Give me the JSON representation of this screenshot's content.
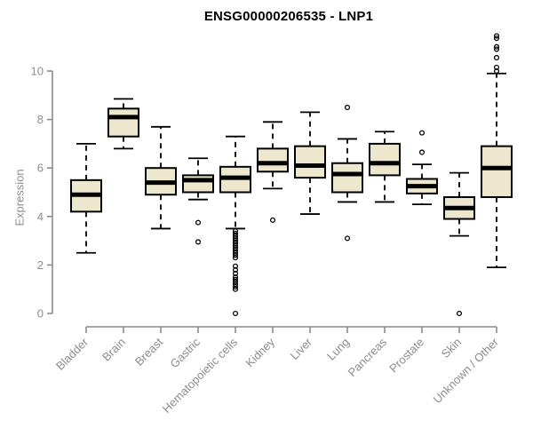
{
  "title": "ENSG00000206535 - LNP1",
  "chart_data": {
    "type": "boxplot",
    "title": "ENSG00000206535 - LNP1",
    "xlabel": "",
    "ylabel": "Expression",
    "y_ticks": [
      0,
      2,
      4,
      6,
      8,
      10
    ],
    "ylim": [
      -0.3,
      11.5
    ],
    "grid": false,
    "legend": "none",
    "categories": [
      "Bladder",
      "Brain",
      "Breast",
      "Gastric",
      "Hematopoietic cells",
      "Kidney",
      "Liver",
      "Lung",
      "Pancreas",
      "Prostate",
      "Skin",
      "Unknown / Other"
    ],
    "series": [
      {
        "name": "Bladder",
        "whisker_low": 2.5,
        "q1": 4.2,
        "median": 4.9,
        "q3": 5.5,
        "whisker_high": 7.0,
        "outliers": []
      },
      {
        "name": "Brain",
        "whisker_low": 6.8,
        "q1": 7.3,
        "median": 8.1,
        "q3": 8.45,
        "whisker_high": 8.85,
        "outliers": []
      },
      {
        "name": "Breast",
        "whisker_low": 3.5,
        "q1": 4.9,
        "median": 5.4,
        "q3": 6.0,
        "whisker_high": 7.7,
        "outliers": []
      },
      {
        "name": "Gastric",
        "whisker_low": 4.7,
        "q1": 5.0,
        "median": 5.5,
        "q3": 5.7,
        "whisker_high": 6.4,
        "outliers": [
          3.75,
          2.95
        ]
      },
      {
        "name": "Hematopoietic cells",
        "whisker_low": 3.5,
        "q1": 5.0,
        "median": 5.6,
        "q3": 6.05,
        "whisker_high": 7.3,
        "outliers": [
          3.4,
          3.3,
          3.2,
          3.1,
          3.0,
          2.9,
          2.8,
          2.7,
          2.6,
          2.5,
          2.4,
          2.3,
          1.95,
          1.8,
          1.65,
          1.5,
          1.4,
          1.3,
          1.2,
          1.1,
          1.0,
          0.0
        ]
      },
      {
        "name": "Kidney",
        "whisker_low": 5.15,
        "q1": 5.85,
        "median": 6.2,
        "q3": 6.8,
        "whisker_high": 7.9,
        "outliers": [
          3.85
        ]
      },
      {
        "name": "Liver",
        "whisker_low": 4.1,
        "q1": 5.6,
        "median": 6.1,
        "q3": 6.9,
        "whisker_high": 8.3,
        "outliers": []
      },
      {
        "name": "Lung",
        "whisker_low": 4.6,
        "q1": 5.0,
        "median": 5.75,
        "q3": 6.2,
        "whisker_high": 7.2,
        "outliers": [
          8.5,
          3.1
        ]
      },
      {
        "name": "Pancreas",
        "whisker_low": 4.6,
        "q1": 5.7,
        "median": 6.2,
        "q3": 7.0,
        "whisker_high": 7.5,
        "outliers": []
      },
      {
        "name": "Prostate",
        "whisker_low": 4.5,
        "q1": 4.95,
        "median": 5.25,
        "q3": 5.55,
        "whisker_high": 6.15,
        "outliers": [
          7.45,
          6.65
        ]
      },
      {
        "name": "Skin",
        "whisker_low": 3.2,
        "q1": 3.9,
        "median": 4.35,
        "q3": 4.8,
        "whisker_high": 5.8,
        "outliers": [
          0.0
        ]
      },
      {
        "name": "Unknown / Other",
        "whisker_low": 1.9,
        "q1": 4.8,
        "median": 6.0,
        "q3": 6.9,
        "whisker_high": 9.9,
        "outliers": [
          11.45,
          11.35,
          11.0,
          10.9,
          10.55,
          10.15,
          10.0
        ]
      }
    ],
    "colors": {
      "box_fill": "#ede7cd",
      "box_stroke": "#000000",
      "median": "#000000",
      "axis_line": "#8c8c8c",
      "axis_text": "#8c8c8c",
      "title": "#000000",
      "background": "#ffffff"
    }
  }
}
